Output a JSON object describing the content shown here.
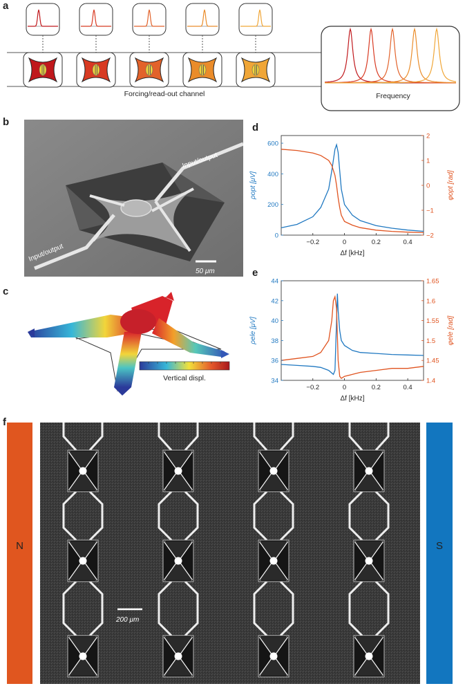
{
  "panels": {
    "a": {
      "letter": "a",
      "channel_label": "Forcing/read-out channel",
      "spectrum_label": "Frequency",
      "resonator_colors": [
        "#c0181c",
        "#d83a22",
        "#e2622a",
        "#ea8c2a",
        "#f0a637"
      ]
    },
    "b": {
      "letter": "b",
      "label_top": "Input/output",
      "label_bottom": "Input/output",
      "scale_bar": "50 μm"
    },
    "c": {
      "letter": "c",
      "colorbar_label": "Vertical displ."
    },
    "d": {
      "letter": "d",
      "xlabel": "Δf [kHz]",
      "ylabel_left": "ρopt [μV]",
      "ylabel_right": "φopt [rad]",
      "left_ticks": [
        "0",
        "200",
        "400",
        "600"
      ],
      "right_ticks": [
        "2",
        "1",
        "0",
        "−1",
        "−2"
      ],
      "x_ticks": [
        "−0.2",
        "0",
        "0.2",
        "0.4"
      ]
    },
    "e": {
      "letter": "e",
      "xlabel": "Δf [kHz]",
      "ylabel_left": "ρele [μV]",
      "ylabel_right": "φele [rad]",
      "left_ticks": [
        "44",
        "42",
        "40",
        "38",
        "36",
        "34"
      ],
      "right_ticks": [
        "1.65",
        "1.6",
        "1.55",
        "1.5",
        "1.45",
        "1.4"
      ],
      "x_ticks": [
        "−0.2",
        "0",
        "0.2",
        "0.4"
      ]
    },
    "f": {
      "letter": "f",
      "north_label": "N",
      "south_label": "S",
      "scale_bar": "200 μm"
    }
  },
  "colors": {
    "amplitude": "#1f78c1",
    "phase": "#e0531f",
    "magnet_north": "#e0561f",
    "magnet_south": "#1276bf"
  },
  "chart_data": [
    {
      "type": "line",
      "panel": "d",
      "xlabel": "Δf [kHz]",
      "xlim": [
        -0.4,
        0.5
      ],
      "series": [
        {
          "name": "ρopt [μV]",
          "axis": "left",
          "ylim": [
            0,
            650
          ],
          "x": [
            -0.4,
            -0.3,
            -0.2,
            -0.15,
            -0.1,
            -0.08,
            -0.06,
            -0.05,
            -0.04,
            -0.03,
            -0.02,
            0,
            0.05,
            0.1,
            0.2,
            0.3,
            0.4,
            0.5
          ],
          "y": [
            48,
            70,
            120,
            180,
            300,
            420,
            560,
            590,
            540,
            420,
            300,
            200,
            130,
            95,
            62,
            45,
            33,
            25
          ]
        },
        {
          "name": "φopt [rad]",
          "axis": "right",
          "ylim": [
            -2,
            2
          ],
          "x": [
            -0.4,
            -0.3,
            -0.2,
            -0.15,
            -0.1,
            -0.08,
            -0.06,
            -0.05,
            -0.04,
            -0.03,
            -0.02,
            0,
            0.05,
            0.1,
            0.2,
            0.3,
            0.4,
            0.5
          ],
          "y": [
            1.45,
            1.4,
            1.3,
            1.2,
            1.0,
            0.8,
            0.4,
            0.0,
            -0.5,
            -0.9,
            -1.2,
            -1.45,
            -1.6,
            -1.7,
            -1.8,
            -1.85,
            -1.88,
            -1.9
          ]
        }
      ]
    },
    {
      "type": "line",
      "panel": "e",
      "xlabel": "Δf [kHz]",
      "xlim": [
        -0.4,
        0.5
      ],
      "series": [
        {
          "name": "ρele [μV]",
          "axis": "left",
          "ylim": [
            34,
            44
          ],
          "x": [
            -0.4,
            -0.3,
            -0.2,
            -0.15,
            -0.1,
            -0.07,
            -0.06,
            -0.05,
            -0.045,
            -0.04,
            -0.03,
            -0.02,
            0,
            0.05,
            0.1,
            0.2,
            0.3,
            0.4,
            0.5
          ],
          "y": [
            35.6,
            35.5,
            35.4,
            35.3,
            35.0,
            34.6,
            35.0,
            40.0,
            42.7,
            41.0,
            39.0,
            38.0,
            37.5,
            37.0,
            36.8,
            36.7,
            36.6,
            36.55,
            36.5
          ]
        },
        {
          "name": "φele [rad]",
          "axis": "right",
          "ylim": [
            1.4,
            1.65
          ],
          "x": [
            -0.4,
            -0.3,
            -0.2,
            -0.15,
            -0.1,
            -0.08,
            -0.07,
            -0.06,
            -0.05,
            -0.04,
            -0.03,
            -0.02,
            0,
            0.05,
            0.1,
            0.2,
            0.3,
            0.4,
            0.5
          ],
          "y": [
            1.45,
            1.455,
            1.46,
            1.47,
            1.5,
            1.55,
            1.6,
            1.61,
            1.58,
            1.45,
            1.41,
            1.405,
            1.41,
            1.415,
            1.42,
            1.425,
            1.43,
            1.43,
            1.435
          ]
        }
      ]
    }
  ]
}
